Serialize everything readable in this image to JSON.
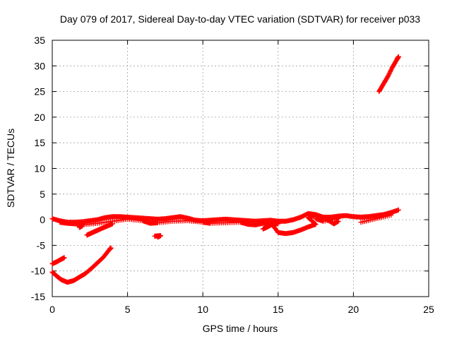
{
  "chart_data": {
    "type": "scatter",
    "title": "Day 079 of 2017, Sidereal Day-to-day VTEC variation (SDTVAR) for receiver p033",
    "xlabel": "GPS time / hours",
    "ylabel": "SDTVAR / TECUs",
    "xlim": [
      0,
      25
    ],
    "ylim": [
      -15,
      35
    ],
    "xticks": [
      0,
      5,
      10,
      15,
      20,
      25
    ],
    "yticks": [
      -15,
      -10,
      -5,
      0,
      5,
      10,
      15,
      20,
      25,
      30,
      35
    ],
    "grid": true,
    "marker": "plus",
    "color": "#ff0000",
    "series": [
      {
        "name": "main-band",
        "points": [
          [
            0.0,
            0.2
          ],
          [
            0.5,
            -0.2
          ],
          [
            1.0,
            -0.5
          ],
          [
            1.5,
            -0.5
          ],
          [
            2.0,
            -0.4
          ],
          [
            2.5,
            -0.2
          ],
          [
            3.0,
            0.0
          ],
          [
            3.5,
            0.4
          ],
          [
            4.0,
            0.6
          ],
          [
            4.5,
            0.6
          ],
          [
            5.0,
            0.5
          ],
          [
            5.5,
            0.4
          ],
          [
            6.0,
            0.3
          ],
          [
            6.5,
            0.2
          ],
          [
            7.0,
            0.1
          ],
          [
            7.5,
            0.2
          ],
          [
            8.0,
            0.4
          ],
          [
            8.5,
            0.6
          ],
          [
            9.0,
            0.3
          ],
          [
            9.5,
            -0.1
          ],
          [
            10.0,
            -0.2
          ],
          [
            10.5,
            -0.1
          ],
          [
            11.0,
            0.0
          ],
          [
            11.5,
            0.1
          ],
          [
            12.0,
            0.0
          ],
          [
            12.5,
            -0.1
          ],
          [
            13.0,
            -0.2
          ],
          [
            13.5,
            -0.3
          ],
          [
            14.0,
            -0.2
          ],
          [
            14.5,
            -0.1
          ],
          [
            15.0,
            -0.3
          ],
          [
            15.5,
            -0.3
          ],
          [
            16.0,
            0.0
          ],
          [
            16.5,
            0.5
          ],
          [
            17.0,
            1.2
          ],
          [
            17.5,
            1.0
          ],
          [
            18.0,
            0.5
          ],
          [
            18.5,
            0.5
          ],
          [
            19.0,
            0.7
          ],
          [
            19.5,
            0.8
          ],
          [
            20.0,
            0.6
          ],
          [
            20.5,
            0.5
          ],
          [
            21.0,
            0.6
          ],
          [
            21.5,
            0.8
          ],
          [
            22.0,
            1.0
          ],
          [
            22.5,
            1.4
          ],
          [
            23.0,
            1.9
          ]
        ]
      },
      {
        "name": "lower-band",
        "points": [
          [
            0.5,
            -0.5
          ],
          [
            1.0,
            -0.7
          ],
          [
            1.5,
            -0.8
          ],
          [
            2.0,
            -1.0
          ],
          [
            3.0,
            -0.7
          ],
          [
            4.0,
            -0.3
          ],
          [
            5.0,
            0.1
          ],
          [
            6.0,
            -0.2
          ],
          [
            6.5,
            -0.7
          ],
          [
            7.0,
            -0.6
          ],
          [
            8.0,
            -0.3
          ],
          [
            9.0,
            -0.2
          ],
          [
            10.0,
            -0.5
          ],
          [
            10.5,
            -0.7
          ],
          [
            11.5,
            -0.6
          ],
          [
            12.5,
            -0.5
          ],
          [
            13.0,
            -0.9
          ],
          [
            13.5,
            -1.0
          ],
          [
            14.0,
            -0.7
          ],
          [
            14.5,
            -0.9
          ],
          [
            15.0,
            -0.8
          ],
          [
            17.5,
            0.2
          ],
          [
            18.0,
            -0.3
          ],
          [
            19.0,
            0.2
          ],
          [
            20.5,
            -0.5
          ],
          [
            21.5,
            0.2
          ],
          [
            22.5,
            0.9
          ]
        ]
      },
      {
        "name": "descending-arcs",
        "points": [
          [
            2.3,
            -3.0
          ],
          [
            2.6,
            -2.6
          ],
          [
            2.9,
            -2.2
          ],
          [
            3.2,
            -1.8
          ],
          [
            3.6,
            -1.3
          ],
          [
            4.0,
            -0.8
          ],
          [
            7.0,
            -3.4
          ],
          [
            7.2,
            -3.1
          ],
          [
            6.8,
            -3.2
          ],
          [
            14.0,
            -1.8
          ],
          [
            14.3,
            -1.4
          ],
          [
            14.6,
            -0.9
          ],
          [
            15.0,
            -2.5
          ],
          [
            15.5,
            -2.7
          ],
          [
            16.0,
            -2.5
          ],
          [
            16.5,
            -2.0
          ],
          [
            17.0,
            -1.4
          ],
          [
            17.5,
            -0.9
          ],
          [
            17.0,
            0.4
          ],
          [
            17.5,
            0.9
          ],
          [
            18.2,
            0.1
          ],
          [
            18.7,
            -0.8
          ],
          [
            19.0,
            -0.3
          ],
          [
            2.0,
            -1.2
          ],
          [
            1.8,
            -1.5
          ]
        ]
      },
      {
        "name": "early-segment",
        "points": [
          [
            0.0,
            -8.6
          ],
          [
            0.3,
            -8.2
          ],
          [
            0.6,
            -7.7
          ],
          [
            0.8,
            -7.4
          ]
        ]
      },
      {
        "name": "early-arc",
        "points": [
          [
            0.0,
            -10.2
          ],
          [
            0.3,
            -11.0
          ],
          [
            0.6,
            -11.7
          ],
          [
            1.0,
            -12.2
          ],
          [
            1.4,
            -11.9
          ],
          [
            1.8,
            -11.2
          ],
          [
            2.2,
            -10.5
          ],
          [
            2.6,
            -9.5
          ],
          [
            3.0,
            -8.4
          ],
          [
            3.4,
            -7.3
          ],
          [
            3.8,
            -5.8
          ],
          [
            3.9,
            -5.5
          ]
        ]
      },
      {
        "name": "late-segment",
        "points": [
          [
            21.7,
            25.0
          ],
          [
            22.0,
            26.5
          ],
          [
            22.3,
            28.0
          ],
          [
            22.6,
            29.8
          ],
          [
            22.9,
            31.3
          ],
          [
            23.0,
            31.8
          ]
        ]
      }
    ]
  }
}
